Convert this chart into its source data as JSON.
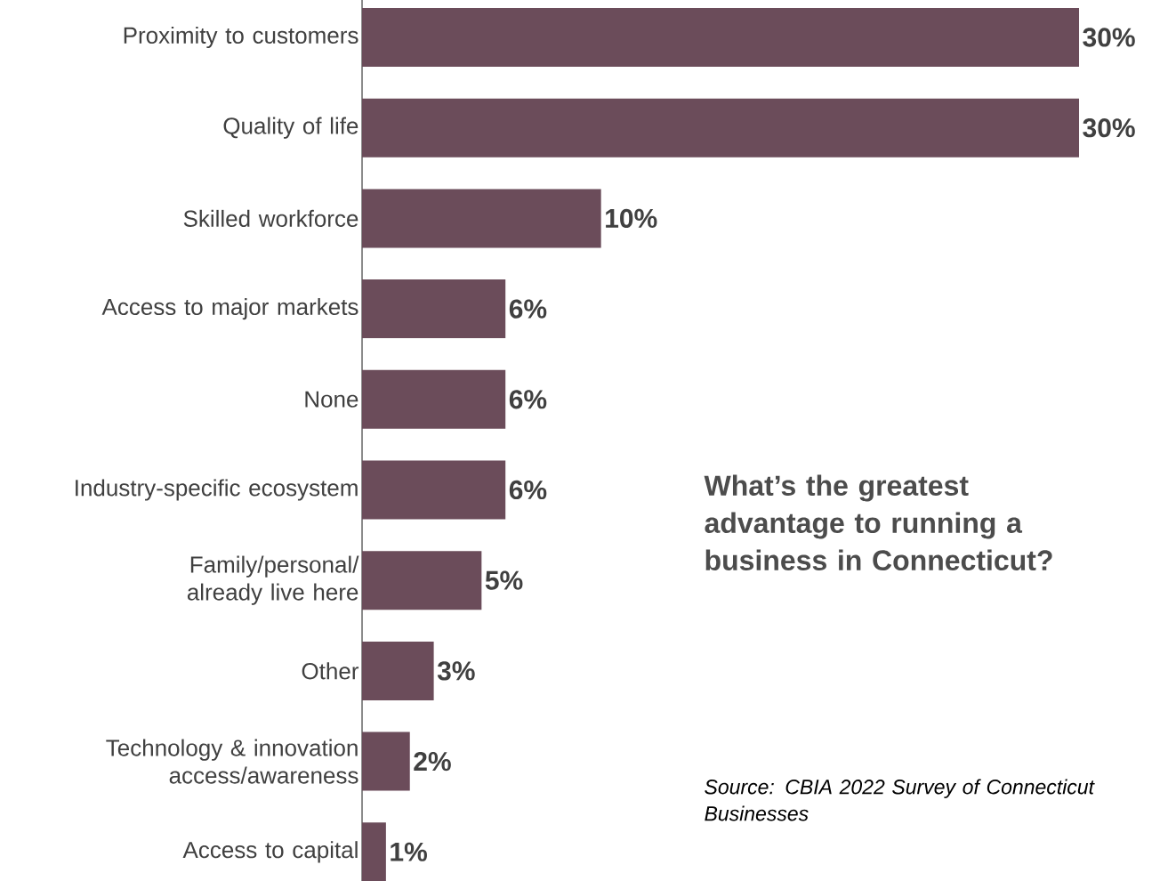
{
  "chart_data": {
    "type": "bar",
    "orientation": "horizontal",
    "title": "What’s the greatest advantage to running a business in Connecticut?",
    "categories": [
      "Proximity to customers",
      "Quality of life",
      "Skilled workforce",
      "Access to major markets",
      "None",
      "Industry-specific ecosystem",
      "Family/personal/ already live here",
      "Other",
      "Technology & innovation access/awareness",
      "Access to capital"
    ],
    "values": [
      30,
      30,
      10,
      6,
      6,
      6,
      5,
      3,
      2,
      1
    ],
    "value_labels": [
      "30%",
      "30%",
      "10%",
      "6%",
      "6%",
      "6%",
      "5%",
      "3%",
      "2%",
      "1%"
    ],
    "color": "#6b4c5a",
    "annotations": [
      "Source: CBIA 2022 Survey of Connecticut Businesses"
    ]
  }
}
